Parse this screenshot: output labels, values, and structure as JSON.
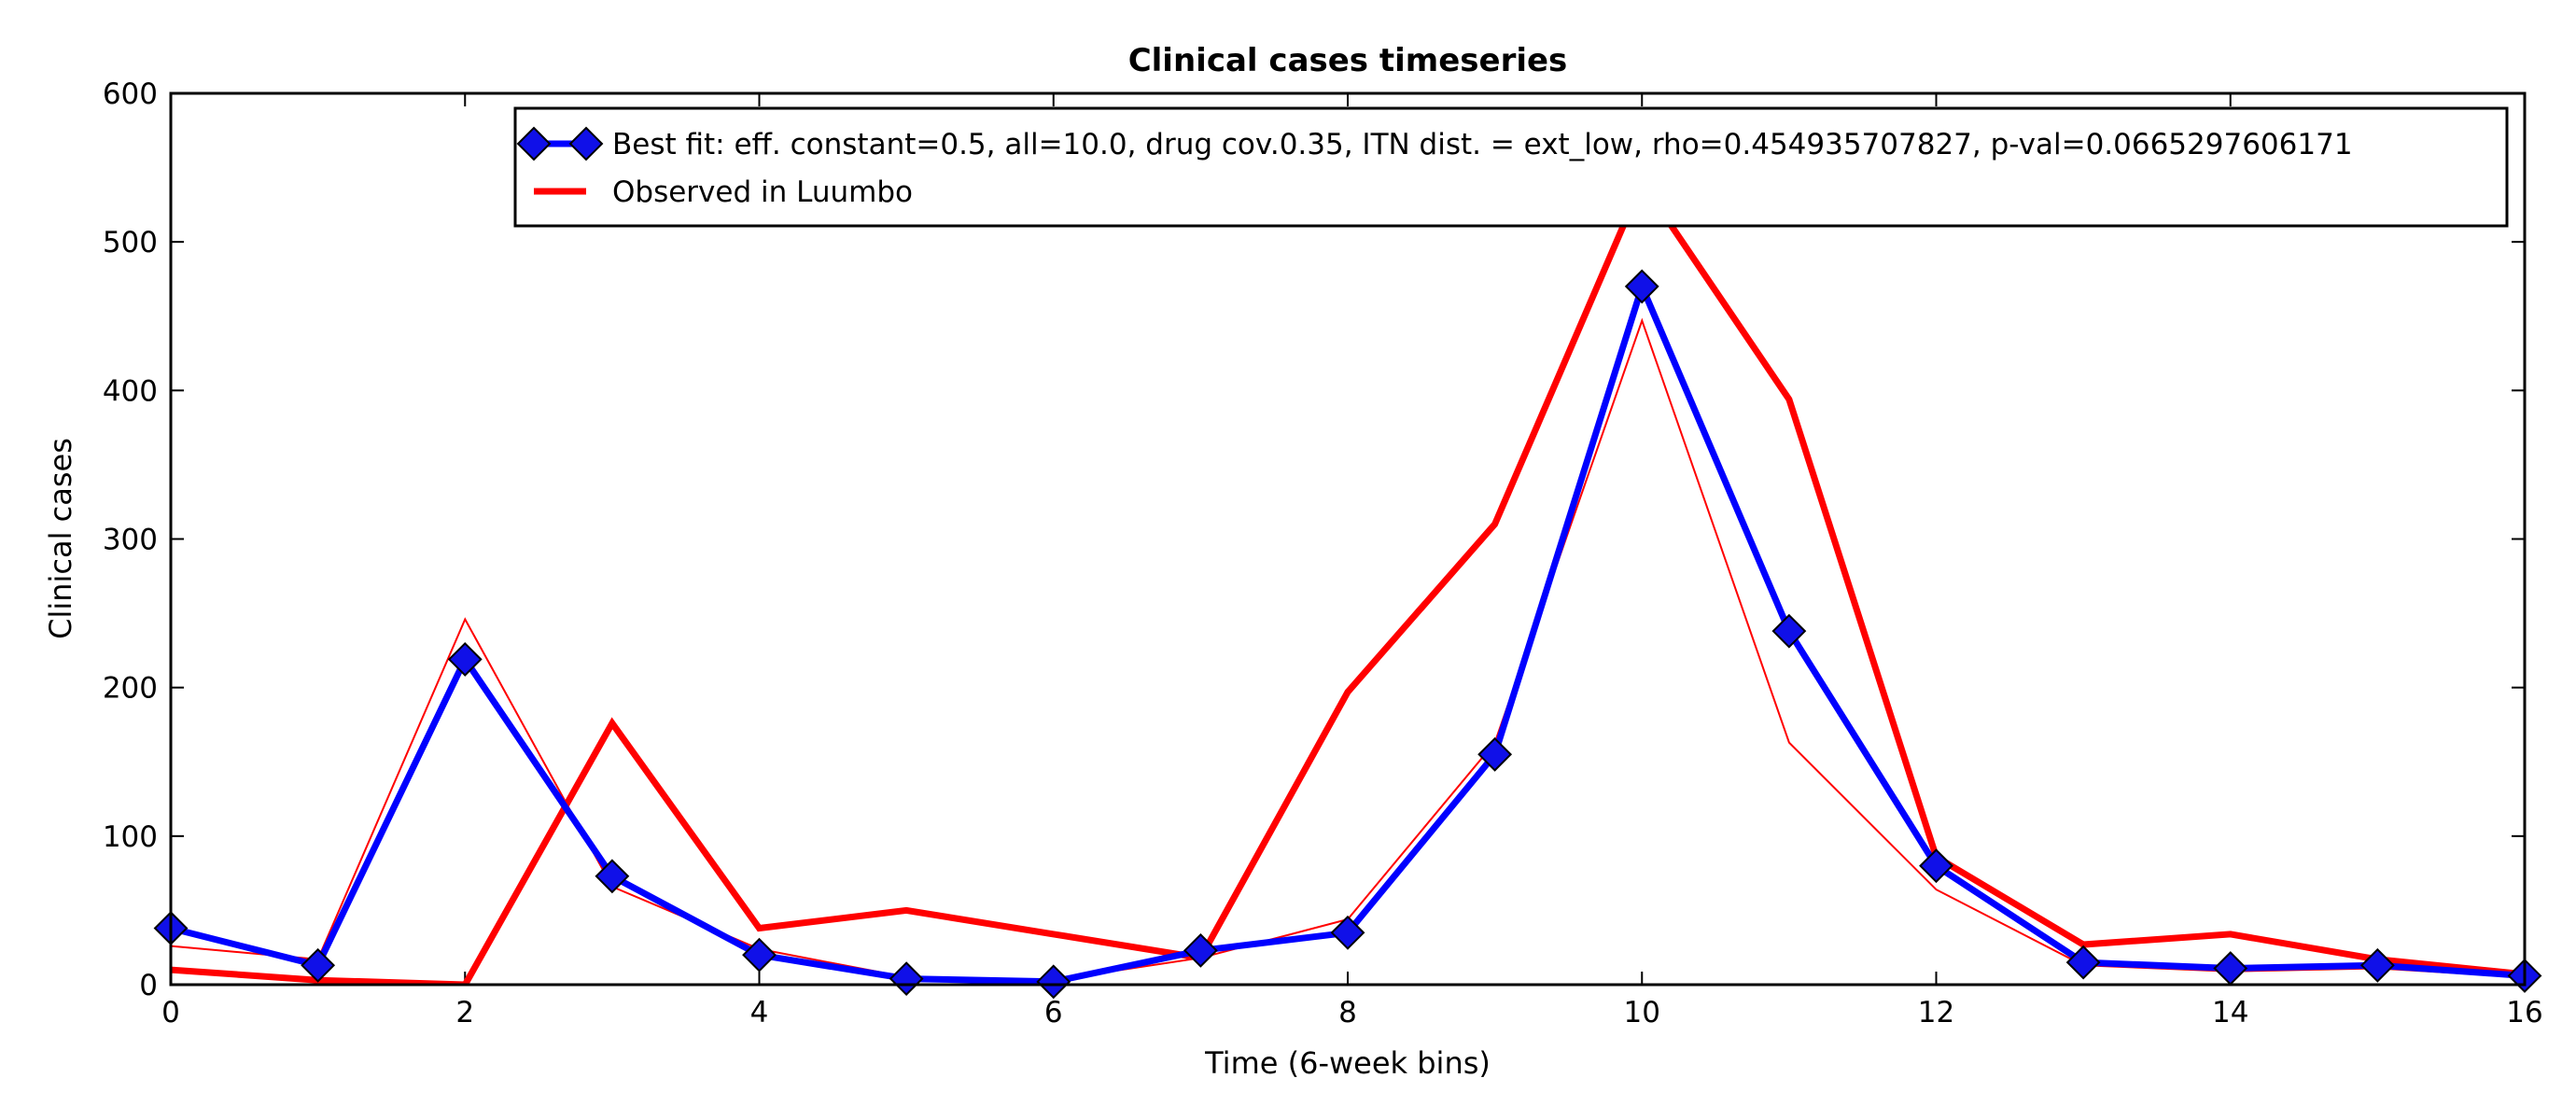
{
  "chart_data": {
    "type": "line",
    "title": "Clinical cases timeseries",
    "xlabel": "Time (6-week bins)",
    "ylabel": "Clinical cases",
    "xlim": [
      0,
      16
    ],
    "ylim": [
      0,
      600
    ],
    "x_ticks": [
      0,
      2,
      4,
      6,
      8,
      10,
      12,
      14,
      16
    ],
    "y_ticks": [
      0,
      100,
      200,
      300,
      400,
      500,
      600
    ],
    "grid": false,
    "legend_position": "top-right",
    "x": [
      0,
      1,
      2,
      3,
      4,
      5,
      6,
      7,
      8,
      9,
      10,
      11,
      12,
      13,
      14,
      15,
      16
    ],
    "series": [
      {
        "name": "Best fit: eff. constant=0.5, all=10.0, drug cov.0.35, ITN dist. = ext_low, rho=0.454935707827, p-val=0.0665297606171",
        "color": "#0000ff",
        "marker": "diamond",
        "marker_color": "#1010e8",
        "line": "thick",
        "in_legend": true,
        "values": [
          38,
          13,
          219,
          73,
          20,
          4,
          2,
          23,
          35,
          155,
          470,
          238,
          80,
          15,
          11,
          13,
          6
        ]
      },
      {
        "name": "Observed in Luumbo",
        "color": "#ff0000",
        "marker": "none",
        "line": "thick",
        "in_legend": true,
        "values": [
          10,
          3,
          0,
          176,
          38,
          50,
          34,
          18,
          197,
          310,
          540,
          394,
          86,
          27,
          34,
          17,
          7
        ]
      },
      {
        "color": "#ff0000",
        "marker": "none",
        "line": "thin",
        "in_legend": false,
        "values": [
          26,
          17,
          246,
          66,
          24,
          5,
          3,
          18,
          44,
          163,
          447,
          163,
          64,
          13,
          9,
          11,
          5
        ]
      }
    ]
  }
}
